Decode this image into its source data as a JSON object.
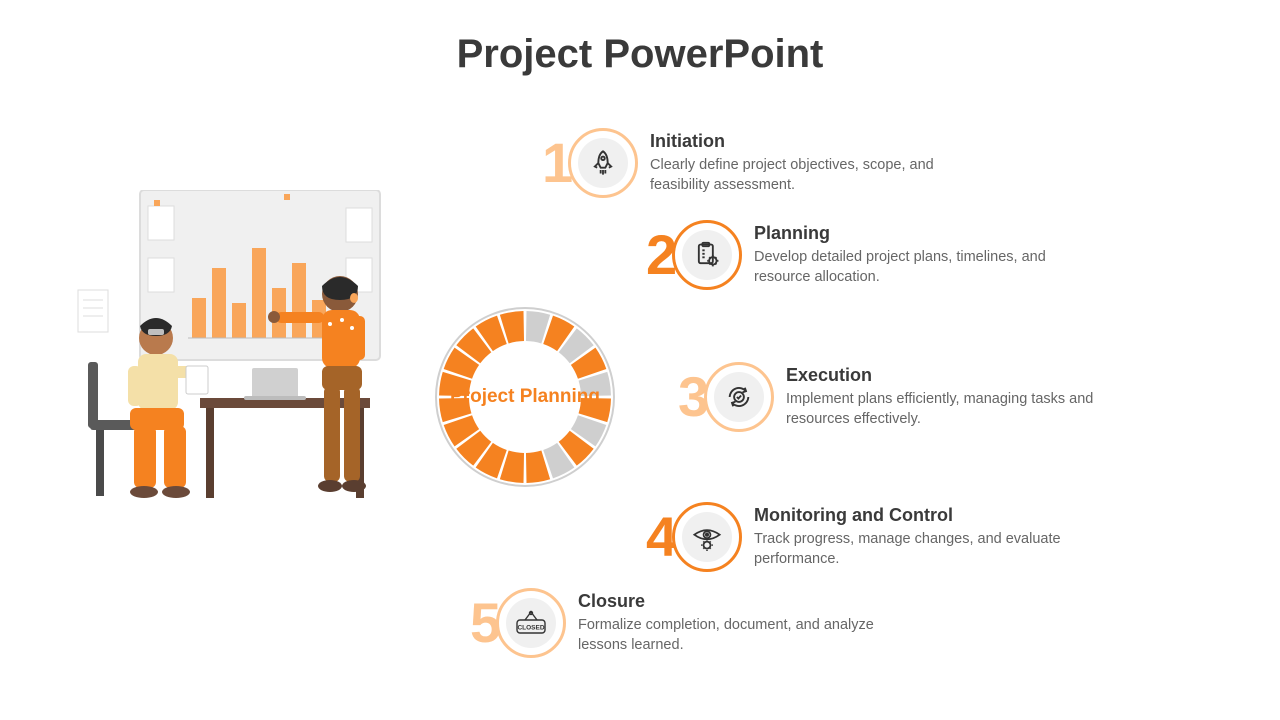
{
  "title": "Project PowerPoint",
  "center_label": "Project Planning",
  "colors": {
    "accent": "#f58220",
    "accent_mid": "#f9a65a",
    "accent_light": "#fdc48f",
    "grey": "#cfcfcf",
    "grey_dark": "#b0b0b0",
    "text_dark": "#3a3a3a",
    "text_muted": "#666666",
    "icon_bg": "#f0f0f0",
    "white": "#ffffff"
  },
  "ring": {
    "outer_radius": 86,
    "inner_radius": 56,
    "segments": 20,
    "gap_deg": 2,
    "colors_left": "#f58220",
    "colors_right_repeat": [
      "#cfcfcf",
      "#f58220"
    ]
  },
  "steps": [
    {
      "num": "1",
      "title": "Initiation",
      "desc": "Clearly define project objectives, scope, and feasibility assessment.",
      "num_color": "#fdc48f",
      "circle_color": "#fdc48f",
      "icon": "rocket"
    },
    {
      "num": "2",
      "title": "Planning",
      "desc": "Develop detailed project plans, timelines, and resource allocation.",
      "num_color": "#f58220",
      "circle_color": "#f58220",
      "icon": "clipboard-gear"
    },
    {
      "num": "3",
      "title": "Execution",
      "desc": "Implement plans efficiently, managing tasks and resources effectively.",
      "num_color": "#fdc48f",
      "circle_color": "#fdc48f",
      "icon": "cycle-check"
    },
    {
      "num": "4",
      "title": "Monitoring and Control",
      "desc": "Track progress, manage changes, and evaluate performance.",
      "num_color": "#f58220",
      "circle_color": "#f58220",
      "icon": "eye-gear"
    },
    {
      "num": "5",
      "title": "Closure",
      "desc": "Formalize completion, document, and analyze lessons learned.",
      "num_color": "#fdc48f",
      "circle_color": "#fdc48f",
      "icon": "closed-sign"
    }
  ],
  "illustration": {
    "board_bg": "#f0f0f0",
    "board_border": "#dcdcdc",
    "chart_bars": [
      60,
      90,
      50,
      110,
      70,
      95,
      55
    ],
    "chart_color": "#f9a65a",
    "person1_shirt": "#f4e0a8",
    "person1_pants": "#f58220",
    "person2_shirt": "#f58220",
    "person2_pants": "#a56428",
    "skin": "#b97a4d",
    "hair": "#2a2a2a",
    "desk": "#6b4a3a",
    "chair": "#5a5a5a",
    "laptop": "#d0d0d0"
  }
}
